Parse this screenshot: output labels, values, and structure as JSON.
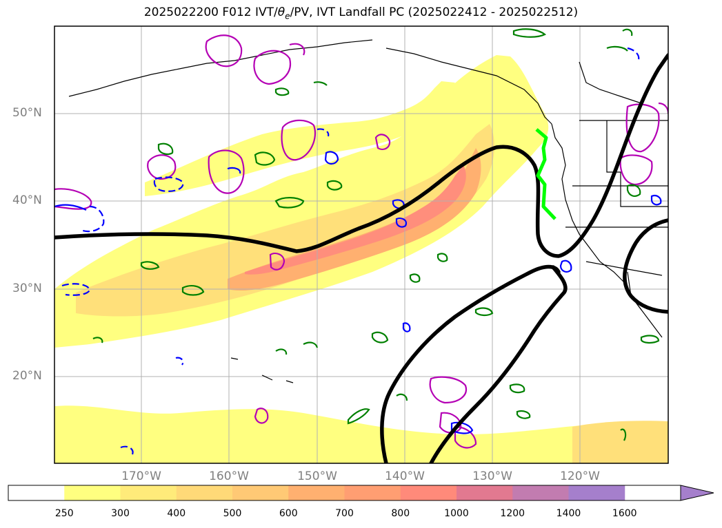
{
  "title": {
    "prefix": "2025022200 F012 IVT/",
    "theta": "θ",
    "theta_sub": "e",
    "suffix": "/PV, IVT Landfall PC (2025022412 - 2025022512)"
  },
  "lat_labels": [
    "50°N",
    "40°N",
    "30°N",
    "20°N"
  ],
  "lon_labels": [
    "170°W",
    "160°W",
    "150°W",
    "140°W",
    "130°W",
    "120°W"
  ],
  "colorbar": {
    "ticks": [
      "250",
      "300",
      "400",
      "500",
      "600",
      "700",
      "800",
      "1000",
      "1200",
      "1400",
      "1600"
    ],
    "colors": [
      "#ffffff",
      "#ffff80",
      "#ffeb7a",
      "#ffd978",
      "#ffc975",
      "#ffb070",
      "#ff9e72",
      "#ff8a7a",
      "#e27990",
      "#c27cb0",
      "#a57fcc"
    ],
    "extend": "max"
  },
  "colors": {
    "frame": "#000000",
    "grid": "#b0b0b0",
    "coastline": "#000000",
    "pc_line": "#000000",
    "landfall_line": "#00ff00",
    "pv_contour": "#b400b4",
    "theta_contour_blue": "#0000ff",
    "theta_contour_green": "#008000"
  }
}
